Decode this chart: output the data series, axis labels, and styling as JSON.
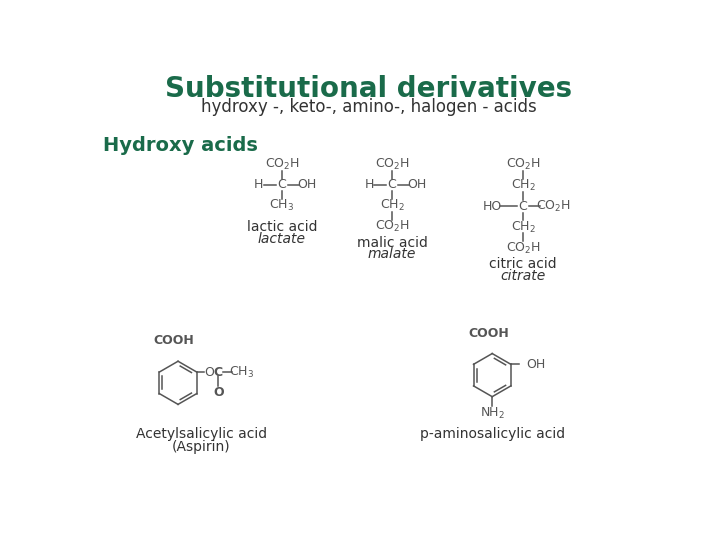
{
  "title": "Substitutional derivatives",
  "subtitle": "hydroxy -, keto-, amino-, halogen - acids",
  "title_color": "#1a6b4a",
  "subtitle_color": "#333333",
  "section_label": "Hydroxy acids",
  "section_label_color": "#1a6b4a",
  "bg_color": "#ffffff",
  "text_color": "#333333",
  "structure_color": "#555555",
  "lactic_label1": "lactic acid",
  "lactic_label2": "lactate",
  "malic_label1": "malic acid",
  "malic_label2": "malate",
  "citric_label1": "citric acid",
  "citric_label2": "citrate",
  "aspirin_label1": "Acetylsalicylic acid",
  "aspirin_label2": "(Aspirin)",
  "pasa_label": "p-aminosalicylic acid",
  "title_fontsize": 20,
  "subtitle_fontsize": 12,
  "section_fontsize": 14,
  "label_fontsize": 10,
  "struct_fontsize": 9
}
